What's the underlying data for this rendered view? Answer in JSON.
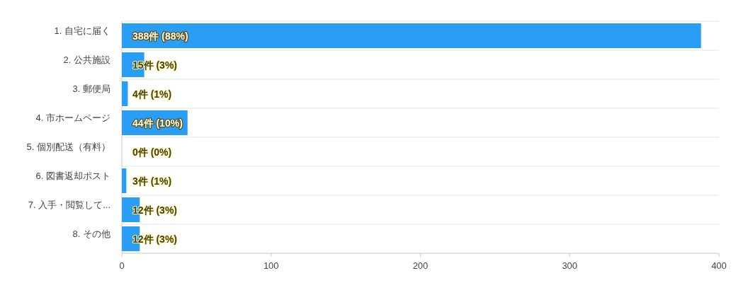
{
  "chart_data": {
    "type": "bar",
    "orientation": "horizontal",
    "categories": [
      "1. 自宅に届く",
      "2. 公共施設",
      "3. 郵便局",
      "4. 市ホームページ",
      "5. 個別配送（有料）",
      "6. 図書返却ポスト",
      "7. 入手・閲覧して...",
      "8. その他"
    ],
    "values": [
      388,
      15,
      4,
      44,
      0,
      3,
      12,
      12
    ],
    "value_labels": [
      "388件 (88%)",
      "15件 (3%)",
      "4件 (1%)",
      "44件 (10%)",
      "0件 (0%)",
      "3件 (1%)",
      "12件 (3%)",
      "12件 (3%)"
    ],
    "color": "#2a9df4",
    "xlim": [
      0,
      400
    ],
    "xticks": [
      0,
      100,
      200,
      300,
      400
    ],
    "grid": "y"
  }
}
